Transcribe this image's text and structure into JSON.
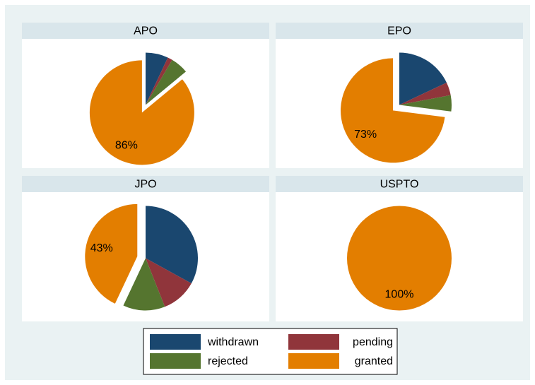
{
  "chart_data": [
    {
      "type": "pie",
      "title": "APO",
      "categories": [
        "withdrawn",
        "pending",
        "rejected",
        "granted"
      ],
      "values": [
        7,
        1.5,
        5.5,
        86
      ],
      "value_labels": [
        null,
        null,
        null,
        "86%"
      ],
      "colors": [
        "#1a476f",
        "#90353b",
        "#55752f",
        "#e37e00"
      ],
      "explode": "granted"
    },
    {
      "type": "pie",
      "title": "EPO",
      "categories": [
        "withdrawn",
        "pending",
        "rejected",
        "granted"
      ],
      "values": [
        18,
        4,
        5,
        73
      ],
      "value_labels": [
        null,
        null,
        null,
        "73%"
      ],
      "colors": [
        "#1a476f",
        "#90353b",
        "#55752f",
        "#e37e00"
      ],
      "explode": "granted"
    },
    {
      "type": "pie",
      "title": "JPO",
      "categories": [
        "withdrawn",
        "pending",
        "rejected",
        "granted"
      ],
      "values": [
        33,
        11,
        13,
        43
      ],
      "value_labels": [
        null,
        null,
        null,
        "43%"
      ],
      "colors": [
        "#1a476f",
        "#90353b",
        "#55752f",
        "#e37e00"
      ],
      "explode": "granted"
    },
    {
      "type": "pie",
      "title": "USPTO",
      "categories": [
        "withdrawn",
        "pending",
        "rejected",
        "granted"
      ],
      "values": [
        0,
        0,
        0,
        100
      ],
      "value_labels": [
        null,
        null,
        null,
        "100%"
      ],
      "colors": [
        "#1a476f",
        "#90353b",
        "#55752f",
        "#e37e00"
      ],
      "explode": "granted"
    }
  ]
}
